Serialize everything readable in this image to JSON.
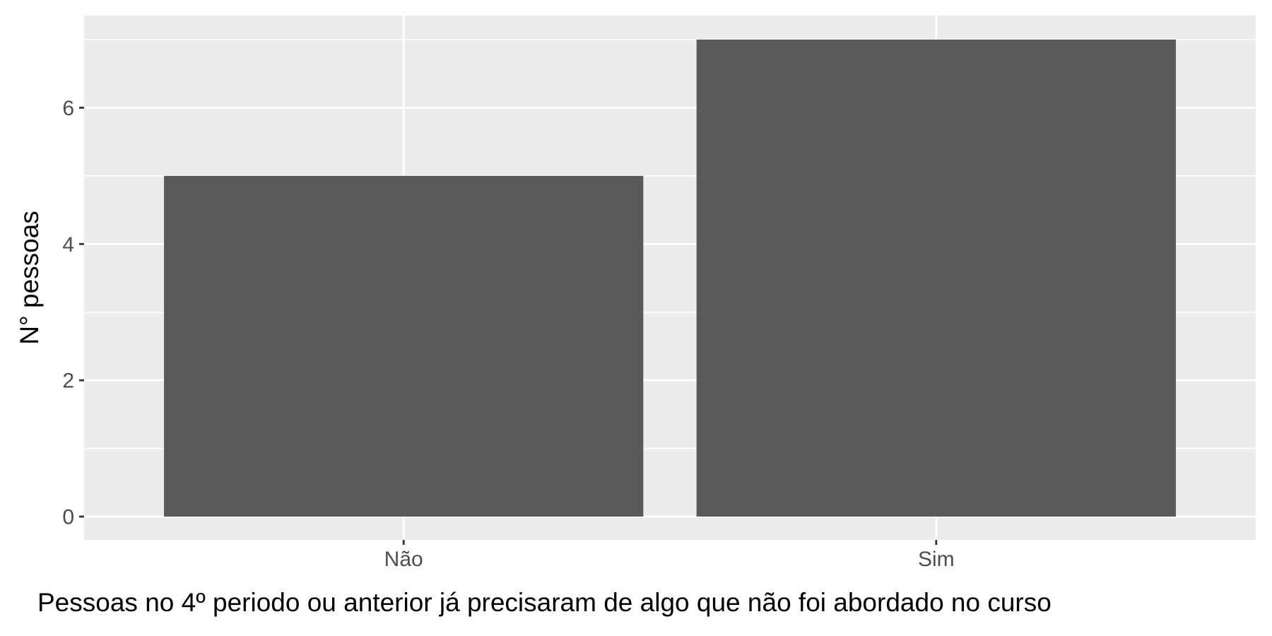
{
  "chart_data": {
    "type": "bar",
    "categories": [
      "Não",
      "Sim"
    ],
    "values": [
      5,
      7
    ],
    "xlabel": "Pessoas no 4º periodo ou anterior já precisaram de algo que não foi abordado no curso",
    "ylabel": "N° pessoas",
    "ylim": [
      0,
      7.35
    ],
    "yticks": [
      0,
      2,
      4,
      6
    ],
    "grid": true,
    "colors": {
      "panel": "#ebebeb",
      "grid": "#ffffff",
      "bar": "#595959",
      "tick": "#333333",
      "tick_label": "#4d4d4d",
      "title": "#000000"
    }
  }
}
